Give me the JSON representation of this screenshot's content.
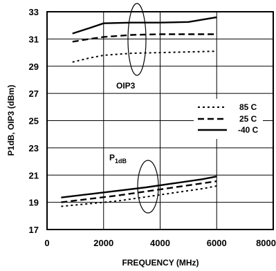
{
  "chart_data": {
    "type": "line",
    "xlabel": "FREQUENCY (MHz)",
    "ylabel": "P1dB, OIP3 (dBm)",
    "xlim": [
      0,
      8000
    ],
    "ylim": [
      17,
      33
    ],
    "xticks": [
      0,
      2000,
      4000,
      6000,
      8000
    ],
    "yticks": [
      17,
      19,
      21,
      23,
      25,
      27,
      29,
      31,
      33
    ],
    "xtick_labels": [
      "0",
      "2000",
      "4000",
      "6000",
      "8000"
    ],
    "ytick_labels": [
      "17",
      "19",
      "21",
      "23",
      "25",
      "27",
      "29",
      "31",
      "33"
    ],
    "grid": true,
    "legend_position": "right",
    "annotations": {
      "oip3": "OIP3",
      "p1db_main": "P",
      "p1db_sub": "1dB"
    },
    "series": [
      {
        "name": "85 C",
        "group": "OIP3",
        "style": "dotted",
        "x": [
          900,
          1500,
          2000,
          3000,
          4000,
          5000,
          6000
        ],
        "y": [
          29.3,
          29.6,
          29.8,
          29.95,
          30.0,
          30.05,
          30.1
        ]
      },
      {
        "name": "25 C",
        "group": "OIP3",
        "style": "dashed",
        "x": [
          900,
          1500,
          2000,
          3000,
          4000,
          5000,
          6000
        ],
        "y": [
          30.8,
          31.0,
          31.15,
          31.3,
          31.35,
          31.35,
          31.35
        ]
      },
      {
        "name": "-40 C",
        "group": "OIP3",
        "style": "solid",
        "x": [
          900,
          1500,
          2000,
          3000,
          4000,
          5000,
          6000
        ],
        "y": [
          31.4,
          31.8,
          32.15,
          32.2,
          32.2,
          32.25,
          32.6
        ]
      },
      {
        "name": "85 C",
        "group": "P1dB",
        "style": "dotted",
        "x": [
          500,
          1500,
          2500,
          3500,
          4500,
          5500,
          6000
        ],
        "y": [
          18.7,
          18.9,
          19.1,
          19.4,
          19.7,
          20.0,
          20.2
        ]
      },
      {
        "name": "25 C",
        "group": "P1dB",
        "style": "dashed",
        "x": [
          500,
          1500,
          2500,
          3500,
          4500,
          5500,
          6000
        ],
        "y": [
          19.0,
          19.25,
          19.5,
          19.8,
          20.1,
          20.4,
          20.55
        ]
      },
      {
        "name": "-40 C",
        "group": "P1dB",
        "style": "solid",
        "x": [
          500,
          1500,
          2500,
          3500,
          4500,
          5500,
          6000
        ],
        "y": [
          19.35,
          19.6,
          19.85,
          20.1,
          20.4,
          20.7,
          20.9
        ]
      }
    ],
    "legend": [
      {
        "label": "85 C",
        "style": "dotted"
      },
      {
        "label": "25 C",
        "style": "dashed"
      },
      {
        "label": "-40 C",
        "style": "solid"
      }
    ]
  }
}
